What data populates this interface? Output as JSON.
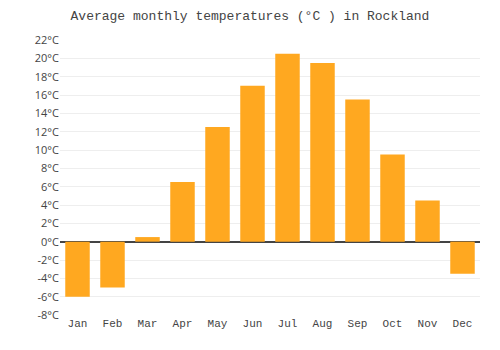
{
  "chart_data": {
    "type": "bar",
    "title": "Average monthly temperatures (°C ) in Rockland",
    "categories": [
      "Jan",
      "Feb",
      "Mar",
      "Apr",
      "May",
      "Jun",
      "Jul",
      "Aug",
      "Sep",
      "Oct",
      "Nov",
      "Dec"
    ],
    "values": [
      -6.0,
      -5.0,
      0.5,
      6.5,
      12.5,
      17.0,
      20.5,
      19.5,
      15.5,
      9.5,
      4.5,
      -3.5
    ],
    "color": "#FFA820",
    "ylim": [
      -8,
      22
    ],
    "yticks": [
      {
        "value": -8,
        "label": "-8°C"
      },
      {
        "value": -6,
        "label": "-6°C"
      },
      {
        "value": -4,
        "label": "-4°C"
      },
      {
        "value": -2,
        "label": "-2°C"
      },
      {
        "value": 0,
        "label": "0°C"
      },
      {
        "value": 2,
        "label": "2°C"
      },
      {
        "value": 4,
        "label": "4°C"
      },
      {
        "value": 6,
        "label": "6°C"
      },
      {
        "value": 8,
        "label": "8°C"
      },
      {
        "value": 10,
        "label": "10°C"
      },
      {
        "value": 12,
        "label": "12°C"
      },
      {
        "value": 14,
        "label": "14°C"
      },
      {
        "value": 16,
        "label": "16°C"
      },
      {
        "value": 18,
        "label": "18°C"
      },
      {
        "value": 20,
        "label": "20°C"
      },
      {
        "value": 22,
        "label": "22°C"
      }
    ],
    "grid": true
  }
}
